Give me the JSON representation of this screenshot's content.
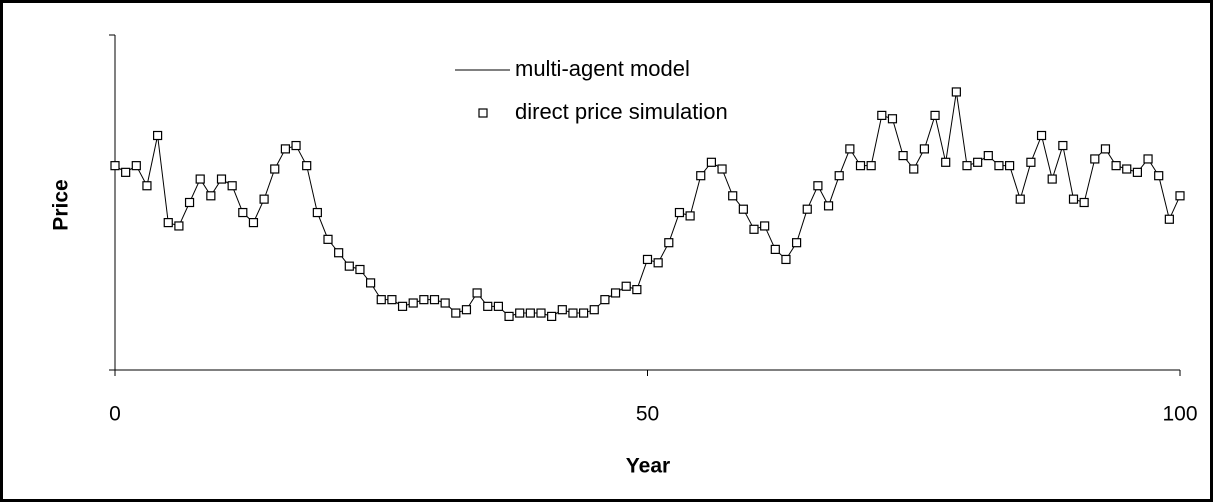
{
  "chart_data": {
    "type": "line",
    "x_label": "Year",
    "y_label": "Price",
    "x": [
      0,
      1,
      2,
      3,
      4,
      5,
      6,
      7,
      8,
      9,
      10,
      11,
      12,
      13,
      14,
      15,
      16,
      17,
      18,
      19,
      20,
      21,
      22,
      23,
      24,
      25,
      26,
      27,
      28,
      29,
      30,
      31,
      32,
      33,
      34,
      35,
      36,
      37,
      38,
      39,
      40,
      41,
      42,
      43,
      44,
      45,
      46,
      47,
      48,
      49,
      50,
      51,
      52,
      53,
      54,
      55,
      56,
      57,
      58,
      59,
      60,
      61,
      62,
      63,
      64,
      65,
      66,
      67,
      68,
      69,
      70,
      71,
      72,
      73,
      74,
      75,
      76,
      77,
      78,
      79,
      80,
      81,
      82,
      83,
      84,
      85,
      86,
      87,
      88,
      89,
      90,
      91,
      92,
      93,
      94,
      95,
      96,
      97,
      98,
      99,
      100
    ],
    "series": [
      {
        "name": "multi-agent model",
        "color": "#000000",
        "style": "line",
        "values": [
          61,
          59,
          61,
          55,
          70,
          44,
          43,
          50,
          57,
          52,
          57,
          55,
          47,
          44,
          51,
          60,
          66,
          67,
          61,
          47,
          39,
          35,
          31,
          30,
          26,
          21,
          21,
          19,
          20,
          21,
          21,
          20,
          17,
          18,
          23,
          19,
          19,
          16,
          17,
          17,
          17,
          16,
          18,
          17,
          17,
          18,
          21,
          23,
          25,
          24,
          33,
          32,
          38,
          47,
          46,
          58,
          62,
          60,
          52,
          48,
          42,
          43,
          36,
          33,
          38,
          48,
          55,
          49,
          58,
          66,
          61,
          61,
          76,
          75,
          64,
          60,
          66,
          76,
          62,
          83,
          61,
          62,
          64,
          61,
          61,
          51,
          62,
          70,
          57,
          67,
          51,
          50,
          63,
          66,
          61,
          60,
          59,
          63,
          58,
          45,
          52
        ]
      },
      {
        "name": "direct price simulation",
        "color": "#000000",
        "style": "square",
        "values": [
          61,
          59,
          61,
          55,
          70,
          44,
          43,
          50,
          57,
          52,
          57,
          55,
          47,
          44,
          51,
          60,
          66,
          67,
          61,
          47,
          39,
          35,
          31,
          30,
          26,
          21,
          21,
          19,
          20,
          21,
          21,
          20,
          17,
          18,
          23,
          19,
          19,
          16,
          17,
          17,
          17,
          16,
          18,
          17,
          17,
          18,
          21,
          23,
          25,
          24,
          33,
          32,
          38,
          47,
          46,
          58,
          62,
          60,
          52,
          48,
          42,
          43,
          36,
          33,
          38,
          48,
          55,
          49,
          58,
          66,
          61,
          61,
          76,
          75,
          64,
          60,
          66,
          76,
          62,
          83,
          61,
          62,
          64,
          61,
          61,
          51,
          62,
          70,
          57,
          67,
          51,
          50,
          63,
          66,
          61,
          60,
          59,
          63,
          58,
          45,
          52
        ]
      }
    ],
    "xlim": [
      0,
      100
    ],
    "xticks": [
      0,
      50,
      100
    ],
    "ylim": [
      0,
      100
    ],
    "grid": false,
    "legend": "top"
  }
}
